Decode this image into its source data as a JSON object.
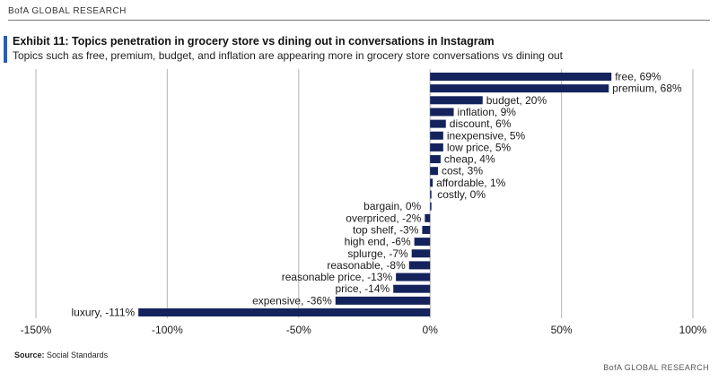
{
  "header": {
    "brand": "BofA GLOBAL RESEARCH"
  },
  "title": "Exhibit 11: Topics penetration in grocery store vs dining out in conversations in Instagram",
  "subtitle": "Topics such as free, premium, budget, and inflation are appearing more in grocery store conversations vs dining out",
  "source": {
    "label": "Source:",
    "text": "Social Standards"
  },
  "footer": {
    "brand": "BofA GLOBAL RESEARCH"
  },
  "colors": {
    "bar": "#14235c",
    "grid": "#bfbfbf",
    "accent": "#2a5db0"
  },
  "chart_data": {
    "type": "bar",
    "orientation": "horizontal",
    "unit": "%",
    "xlim": [
      -150,
      100
    ],
    "xticks": [
      -150,
      -100,
      -50,
      0,
      50,
      100
    ],
    "xtick_labels": [
      "-150%",
      "-100%",
      "-50%",
      "0%",
      "50%",
      "100%"
    ],
    "grid": true,
    "legend": "none",
    "categories": [
      "free",
      "premium",
      "budget",
      "inflation",
      "discount",
      "inexpensive",
      "low price",
      "cheap",
      "cost",
      "affordable",
      "costly",
      "bargain",
      "overpriced",
      "top shelf",
      "high end",
      "splurge",
      "reasonable",
      "reasonable price",
      "price",
      "expensive",
      "luxury"
    ],
    "values": [
      69,
      68,
      20,
      9,
      6,
      5,
      5,
      4,
      3,
      1,
      0,
      0,
      -2,
      -3,
      -6,
      -7,
      -8,
      -13,
      -14,
      -36,
      -111
    ],
    "data_labels": [
      "free, 69%",
      "premium, 68%",
      "budget, 20%",
      "inflation, 9%",
      "discount, 6%",
      "inexpensive, 5%",
      "low price, 5%",
      "cheap, 4%",
      "cost, 3%",
      "affordable, 1%",
      "costly, 0%",
      "bargain, 0%",
      "overpriced, -2%",
      "top shelf, -3%",
      "high end, -6%",
      "splurge, -7%",
      "reasonable, -8%",
      "reasonable price, -13%",
      "price, -14%",
      "expensive, -36%",
      "luxury, -111%"
    ]
  }
}
